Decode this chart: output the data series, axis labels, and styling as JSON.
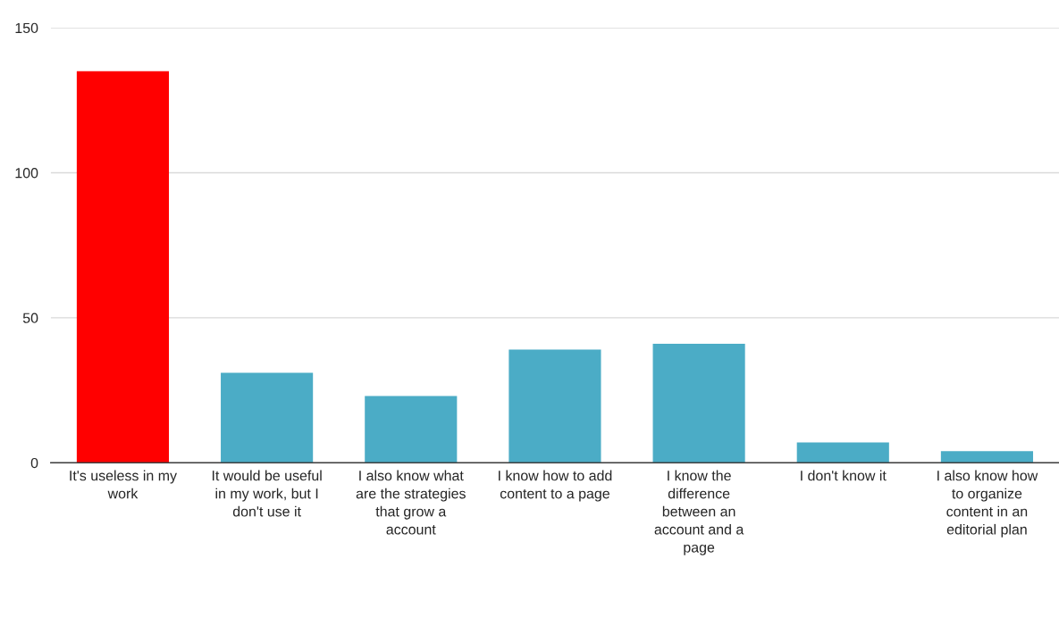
{
  "chart_data": {
    "type": "bar",
    "categories": [
      "It's useless in my work",
      "It would be useful in my work, but I don't use it",
      "I also know what are the strategies that grow a account",
      "I know how to add content to a page",
      "I know the difference between an account and a page",
      "I don't know it",
      "I also know how to organize content in an editorial plan"
    ],
    "values": [
      135,
      31,
      23,
      39,
      41,
      7,
      4
    ],
    "colors": [
      "#ff0000",
      "#4bacc6",
      "#4bacc6",
      "#4bacc6",
      "#4bacc6",
      "#4bacc6",
      "#4bacc6"
    ],
    "ylim": [
      0,
      150
    ],
    "yticks": [
      0,
      50,
      100,
      150
    ],
    "grid": "y"
  }
}
